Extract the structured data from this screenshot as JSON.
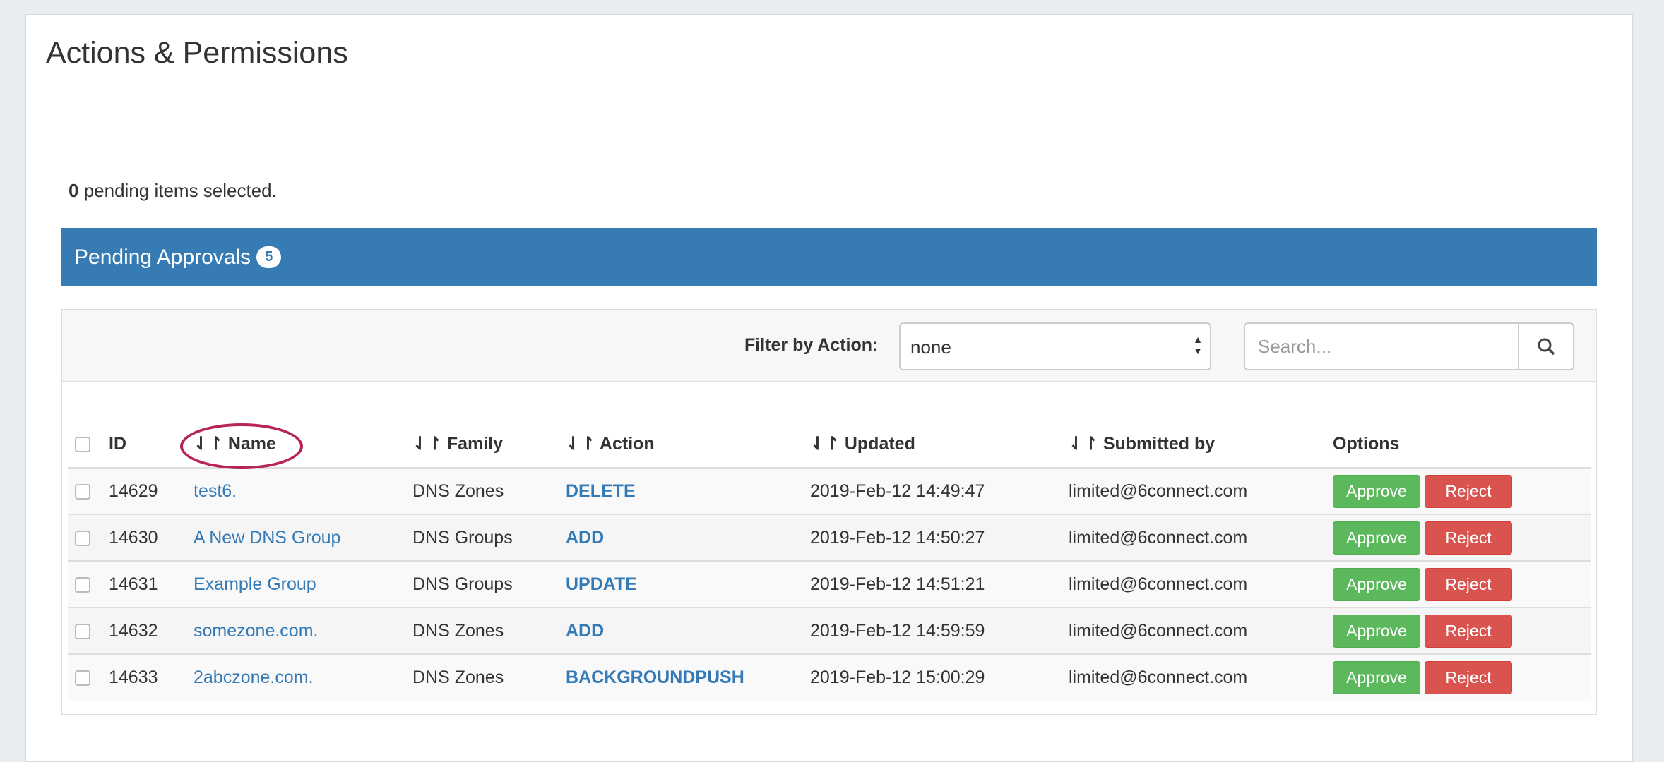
{
  "page": {
    "title": "Actions & Permissions",
    "selected_count": "0",
    "selected_text": " pending items selected."
  },
  "panel": {
    "title": "Pending Approvals",
    "badge": "5"
  },
  "filter": {
    "label": "Filter by Action:",
    "value": "none",
    "search_placeholder": "Search..."
  },
  "columns": [
    "ID",
    "Name",
    "Family",
    "Action",
    "Updated",
    "Submitted by",
    "Options"
  ],
  "rows": [
    {
      "id": "14629",
      "name": "test6.",
      "family": "DNS Zones",
      "action": "DELETE",
      "updated": "2019-Feb-12 14:49:47",
      "submitted_by": "limited@6connect.com"
    },
    {
      "id": "14630",
      "name": "A New DNS Group",
      "family": "DNS Groups",
      "action": "ADD",
      "updated": "2019-Feb-12 14:50:27",
      "submitted_by": "limited@6connect.com"
    },
    {
      "id": "14631",
      "name": "Example Group",
      "family": "DNS Groups",
      "action": "UPDATE",
      "updated": "2019-Feb-12 14:51:21",
      "submitted_by": "limited@6connect.com"
    },
    {
      "id": "14632",
      "name": "somezone.com.",
      "family": "DNS Zones",
      "action": "ADD",
      "updated": "2019-Feb-12 14:59:59",
      "submitted_by": "limited@6connect.com"
    },
    {
      "id": "14633",
      "name": "2abczone.com.",
      "family": "DNS Zones",
      "action": "BACKGROUNDPUSH",
      "updated": "2019-Feb-12 15:00:29",
      "submitted_by": "limited@6connect.com"
    }
  ],
  "buttons": {
    "approve": "Approve",
    "reject": "Reject"
  },
  "colors": {
    "header": "#377bb5",
    "approve": "#5cb85c",
    "reject": "#d9534f",
    "link": "#337ab7",
    "highlight": "#b8245a"
  },
  "icons": {
    "sort": "sort-arrows-icon",
    "search": "search-icon",
    "select": "select-arrows-icon"
  }
}
